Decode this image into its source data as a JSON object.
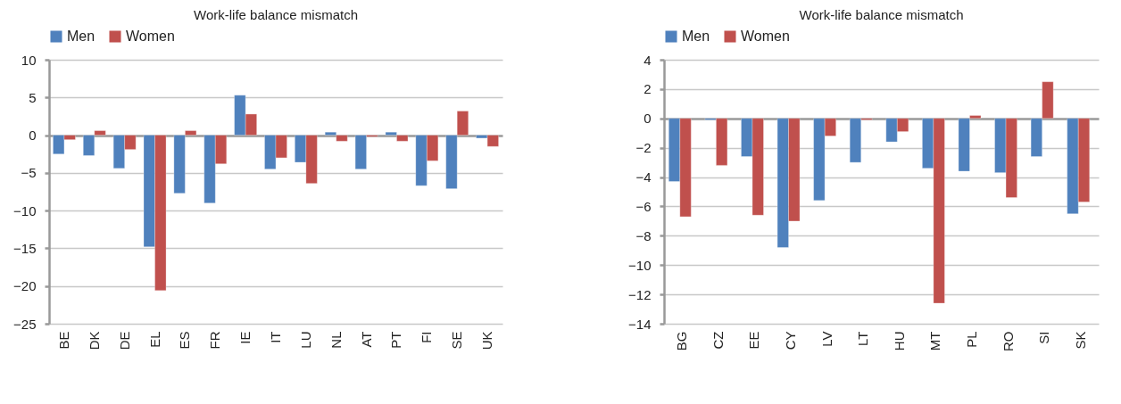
{
  "chart_data": [
    {
      "type": "bar",
      "title": "Work-life balance mismatch",
      "categories": [
        "BE",
        "DK",
        "DE",
        "EL",
        "ES",
        "FR",
        "IE",
        "IT",
        "LU",
        "NL",
        "AT",
        "PT",
        "FI",
        "SE",
        "UK"
      ],
      "series": [
        {
          "name": "Men",
          "color": "#4f81bd",
          "values": [
            -2.5,
            -2.7,
            -4.4,
            -14.8,
            -7.7,
            -9.0,
            5.3,
            -4.5,
            -3.6,
            0.4,
            -4.5,
            0.4,
            -6.7,
            -7.1,
            -0.4
          ]
        },
        {
          "name": "Women",
          "color": "#c0504d",
          "values": [
            -0.6,
            0.6,
            -1.9,
            -20.6,
            0.6,
            -3.8,
            2.8,
            -3.0,
            -6.4,
            -0.8,
            -0.2,
            -0.8,
            -3.4,
            3.2,
            -1.5
          ]
        }
      ],
      "ylim": [
        -25,
        10
      ],
      "yticks": [
        -25,
        -20,
        -15,
        -10,
        -5,
        0,
        5,
        10
      ],
      "grid": "y",
      "legend": "top"
    },
    {
      "type": "bar",
      "title": "Work-life balance mismatch",
      "categories": [
        "BG",
        "CZ",
        "EE",
        "CY",
        "LV",
        "LT",
        "HU",
        "MT",
        "PL",
        "RO",
        "SI",
        "SK"
      ],
      "series": [
        {
          "name": "Men",
          "color": "#4f81bd",
          "values": [
            -4.3,
            -0.1,
            -2.6,
            -8.8,
            -5.6,
            -3.0,
            -1.6,
            -3.4,
            -3.6,
            -3.7,
            -2.6,
            -6.5
          ]
        },
        {
          "name": "Women",
          "color": "#c0504d",
          "values": [
            -6.7,
            -3.2,
            -6.6,
            -7.0,
            -1.2,
            -0.1,
            -0.9,
            -12.6,
            0.2,
            -5.4,
            2.5,
            -5.7
          ]
        }
      ],
      "ylim": [
        -14,
        4
      ],
      "yticks": [
        -14,
        -12,
        -10,
        -8,
        -6,
        -4,
        -2,
        0,
        2,
        4
      ],
      "grid": "y",
      "legend": "top"
    }
  ]
}
